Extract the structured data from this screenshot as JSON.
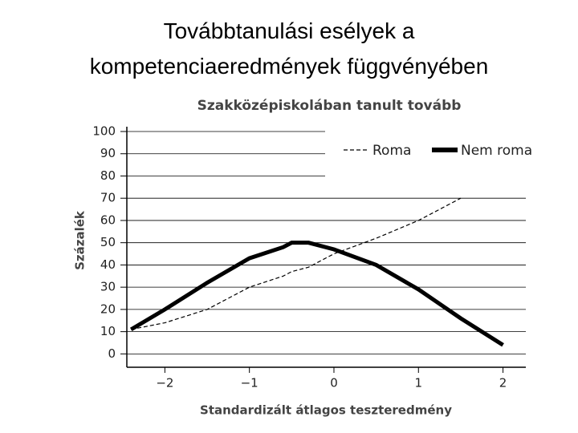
{
  "page_title": [
    "Továbbtanulási esélyek a",
    "kompetenciaeredmények függvényében"
  ],
  "chart_data": {
    "type": "line",
    "title": "Szakközépiskolában tanult tovább",
    "x_label": "Standardizált átlagos teszteredmény",
    "y_label": "Százalék",
    "x": [
      -2.4,
      -2,
      -1.5,
      -1,
      -0.6,
      -0.5,
      -0.3,
      0,
      0.5,
      1,
      1.5,
      2
    ],
    "series": [
      {
        "name": "Roma",
        "color": "#000000",
        "dashed": true,
        "values": [
          11,
          14,
          20,
          30,
          35,
          37,
          39,
          45,
          52,
          60,
          70,
          null
        ]
      },
      {
        "name": "Nem roma",
        "color": "#000000",
        "dashed": false,
        "values": [
          11,
          20,
          32,
          43,
          48,
          50,
          50,
          47,
          40,
          29,
          16,
          4
        ]
      }
    ],
    "xlim": [
      -2.45,
      2.27
    ],
    "ylim": [
      -6,
      100
    ],
    "xticks": [
      {
        "value": -2,
        "label": "−2"
      },
      {
        "value": -1,
        "label": "−1"
      },
      0,
      1,
      2
    ],
    "yticks": [
      0,
      10,
      20,
      30,
      40,
      50,
      60,
      70,
      80,
      90,
      100
    ],
    "grid": true,
    "legend": "upper right"
  }
}
